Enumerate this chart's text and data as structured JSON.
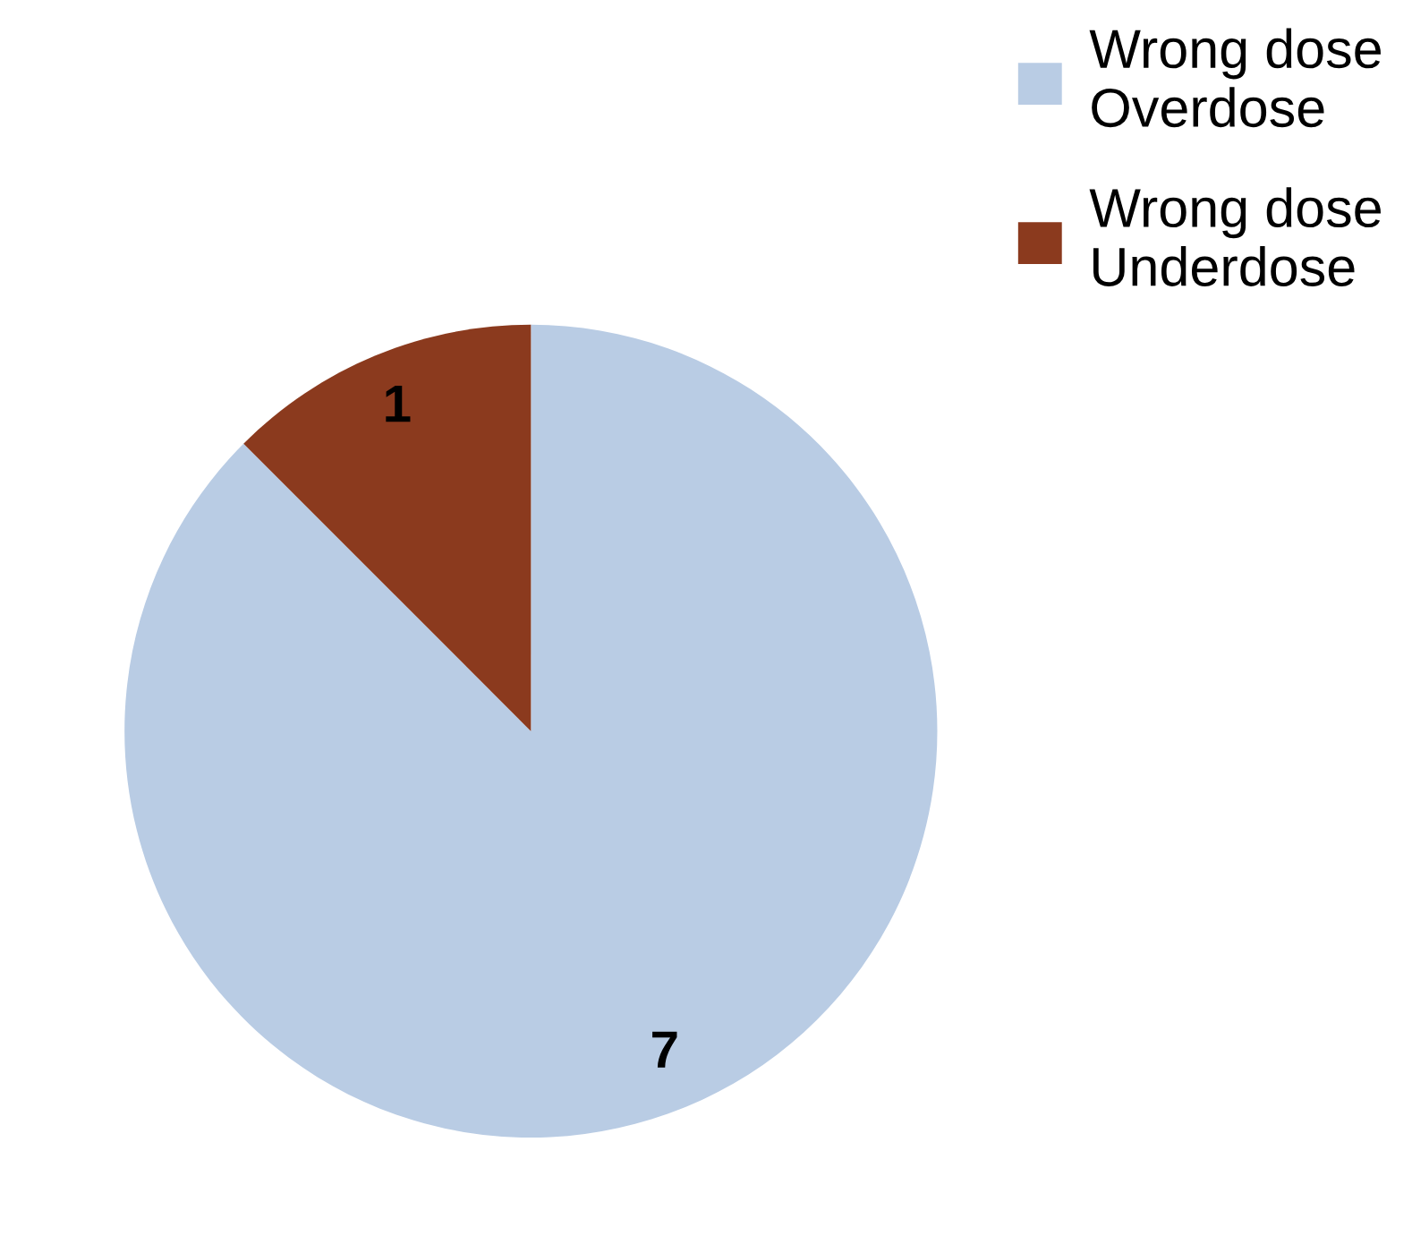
{
  "chart_data": {
    "type": "pie",
    "categories": [
      "Wrong dose\nOverdose",
      "Wrong dose\nUnderdose"
    ],
    "values": [
      7,
      1
    ],
    "colors": [
      "#b9cce4",
      "#8b3a1e"
    ],
    "data_labels": true,
    "legend": "top right"
  }
}
